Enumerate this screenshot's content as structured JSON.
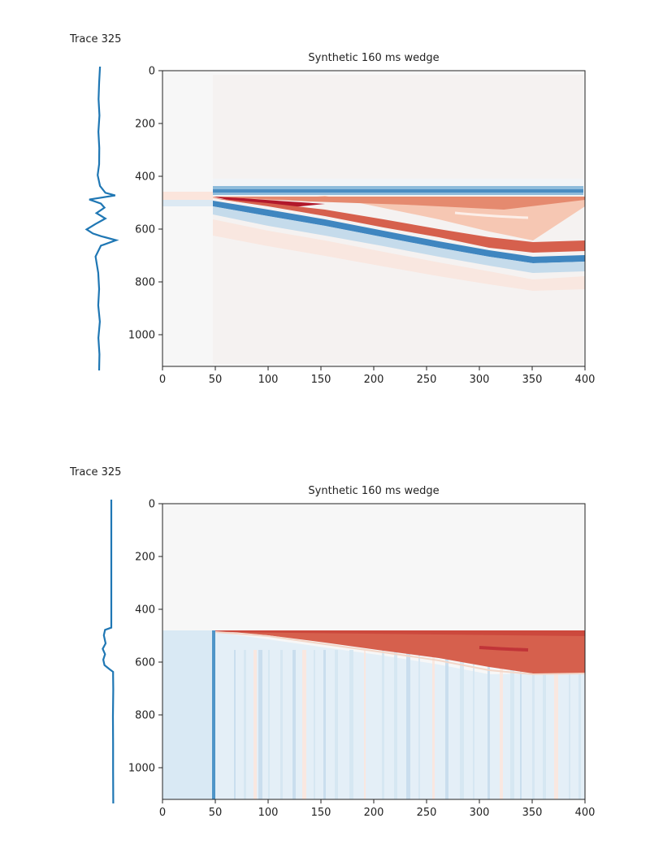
{
  "colors": {
    "trace": "#1f77b4",
    "red_dark": "#b2182b",
    "red": "#d6604d",
    "blue": "#2166ac",
    "blue_light": "#92c5de",
    "background": "#f7f7f7"
  },
  "chart_data": [
    {
      "type": "heatmap",
      "name": "top",
      "title": "Synthetic 160 ms wedge",
      "trace_label": "Trace 325",
      "colormap": "RdBu_r",
      "xlim": [
        0,
        400
      ],
      "ylim": [
        1120,
        0
      ],
      "x_ticks": [
        0,
        50,
        100,
        150,
        200,
        250,
        300,
        350,
        400
      ],
      "y_ticks": [
        0,
        200,
        400,
        600,
        800,
        1000
      ],
      "wedge": {
        "start_trace": 50,
        "top_depth": 480,
        "base_depth_at_start": 480,
        "base_depth_at_end": 640,
        "end_trace": 350
      },
      "trace_profile": {
        "depth": [
          0,
          60,
          120,
          180,
          240,
          300,
          360,
          400,
          440,
          465,
          475,
          490,
          505,
          520,
          540,
          560,
          580,
          600,
          615,
          625,
          640,
          660,
          700,
          760,
          820,
          880,
          940,
          1000,
          1060,
          1120
        ],
        "amplitude": [
          0.05,
          0.0,
          -0.03,
          0.02,
          -0.04,
          0.01,
          0.0,
          -0.08,
          0.05,
          0.35,
          0.9,
          -0.55,
          0.1,
          0.3,
          -0.15,
          0.35,
          -0.2,
          -0.7,
          -0.35,
          0.1,
          0.95,
          0.1,
          -0.2,
          -0.05,
          0.0,
          -0.05,
          0.04,
          -0.04,
          0.02,
          0.0
        ]
      }
    },
    {
      "type": "heatmap",
      "name": "bottom",
      "title": "Synthetic 160 ms wedge",
      "trace_label": "Trace 325",
      "colormap": "RdBu_r",
      "xlim": [
        0,
        400
      ],
      "ylim": [
        1120,
        0
      ],
      "x_ticks": [
        0,
        50,
        100,
        150,
        200,
        250,
        300,
        350,
        400
      ],
      "y_ticks": [
        0,
        200,
        400,
        600,
        800,
        1000
      ],
      "wedge": {
        "start_trace": 50,
        "top_depth": 480,
        "base_depth_at_start": 480,
        "base_depth_at_end": 640,
        "end_trace": 350
      },
      "trace_profile": {
        "depth": [
          0,
          100,
          200,
          300,
          400,
          460,
          472,
          480,
          500,
          530,
          550,
          570,
          590,
          610,
          625,
          635,
          650,
          700,
          800,
          900,
          1000,
          1120
        ],
        "amplitude": [
          0.0,
          0.0,
          0.0,
          0.0,
          0.0,
          0.0,
          0.0,
          -0.35,
          -0.42,
          -0.32,
          -0.48,
          -0.35,
          -0.45,
          -0.38,
          -0.1,
          0.1,
          0.1,
          0.11,
          0.09,
          0.1,
          0.1,
          0.11
        ]
      }
    }
  ]
}
